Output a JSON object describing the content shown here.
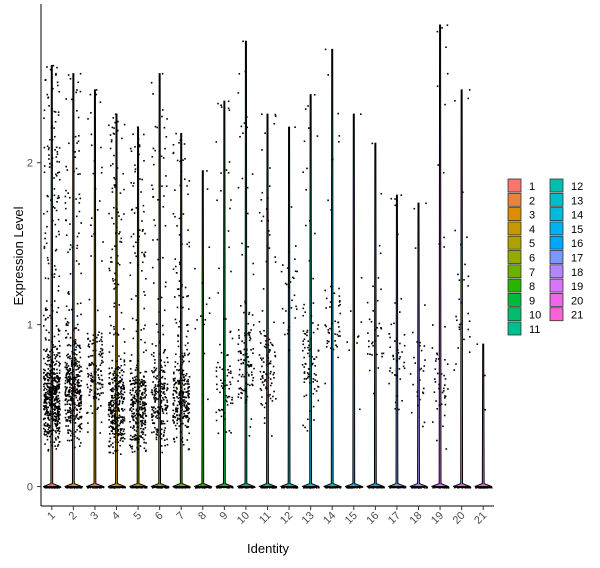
{
  "chart_data": {
    "type": "violin",
    "xlabel": "Identity",
    "ylabel": "Expression Level",
    "ylim": [
      -0.12,
      2.98
    ],
    "yticks": [
      0,
      1,
      2
    ],
    "grid": false,
    "legend_position": "right",
    "points_shown": true,
    "categories": [
      "1",
      "2",
      "3",
      "4",
      "5",
      "6",
      "7",
      "8",
      "9",
      "10",
      "11",
      "12",
      "13",
      "14",
      "15",
      "16",
      "17",
      "18",
      "19",
      "20",
      "21"
    ],
    "colors": [
      "#F8766D",
      "#EC8239",
      "#DB8E00",
      "#C79800",
      "#AFA100",
      "#93AA00",
      "#6BB100",
      "#27B500",
      "#00BA38",
      "#00BE6C",
      "#00BF8E",
      "#00C0AC",
      "#00BEC6",
      "#00BADE",
      "#00B2F3",
      "#00A6FF",
      "#7997FF",
      "#B385FF",
      "#DA74FC",
      "#F066EA",
      "#FC61D5"
    ],
    "max_values": [
      2.6,
      2.55,
      2.45,
      2.3,
      2.22,
      2.55,
      2.18,
      1.95,
      2.38,
      2.75,
      2.3,
      2.22,
      2.42,
      2.7,
      2.3,
      2.12,
      1.8,
      1.75,
      2.85,
      2.45,
      0.88
    ],
    "expressing_counts": [
      600,
      420,
      150,
      380,
      330,
      240,
      300,
      15,
      80,
      120,
      110,
      30,
      90,
      50,
      10,
      35,
      45,
      30,
      50,
      30,
      3
    ],
    "expressing_center": [
      0.55,
      0.6,
      0.7,
      0.5,
      0.5,
      0.55,
      0.55,
      1.0,
      0.65,
      0.8,
      0.75,
      1.2,
      0.8,
      1.0,
      1.0,
      1.0,
      0.8,
      0.7,
      0.6,
      1.1,
      0.7
    ],
    "legend": {
      "col1": [
        "1",
        "2",
        "3",
        "4",
        "5",
        "6",
        "7",
        "8",
        "9",
        "10",
        "11"
      ],
      "col2": [
        "12",
        "13",
        "14",
        "15",
        "16",
        "17",
        "18",
        "19",
        "20",
        "21"
      ]
    }
  }
}
